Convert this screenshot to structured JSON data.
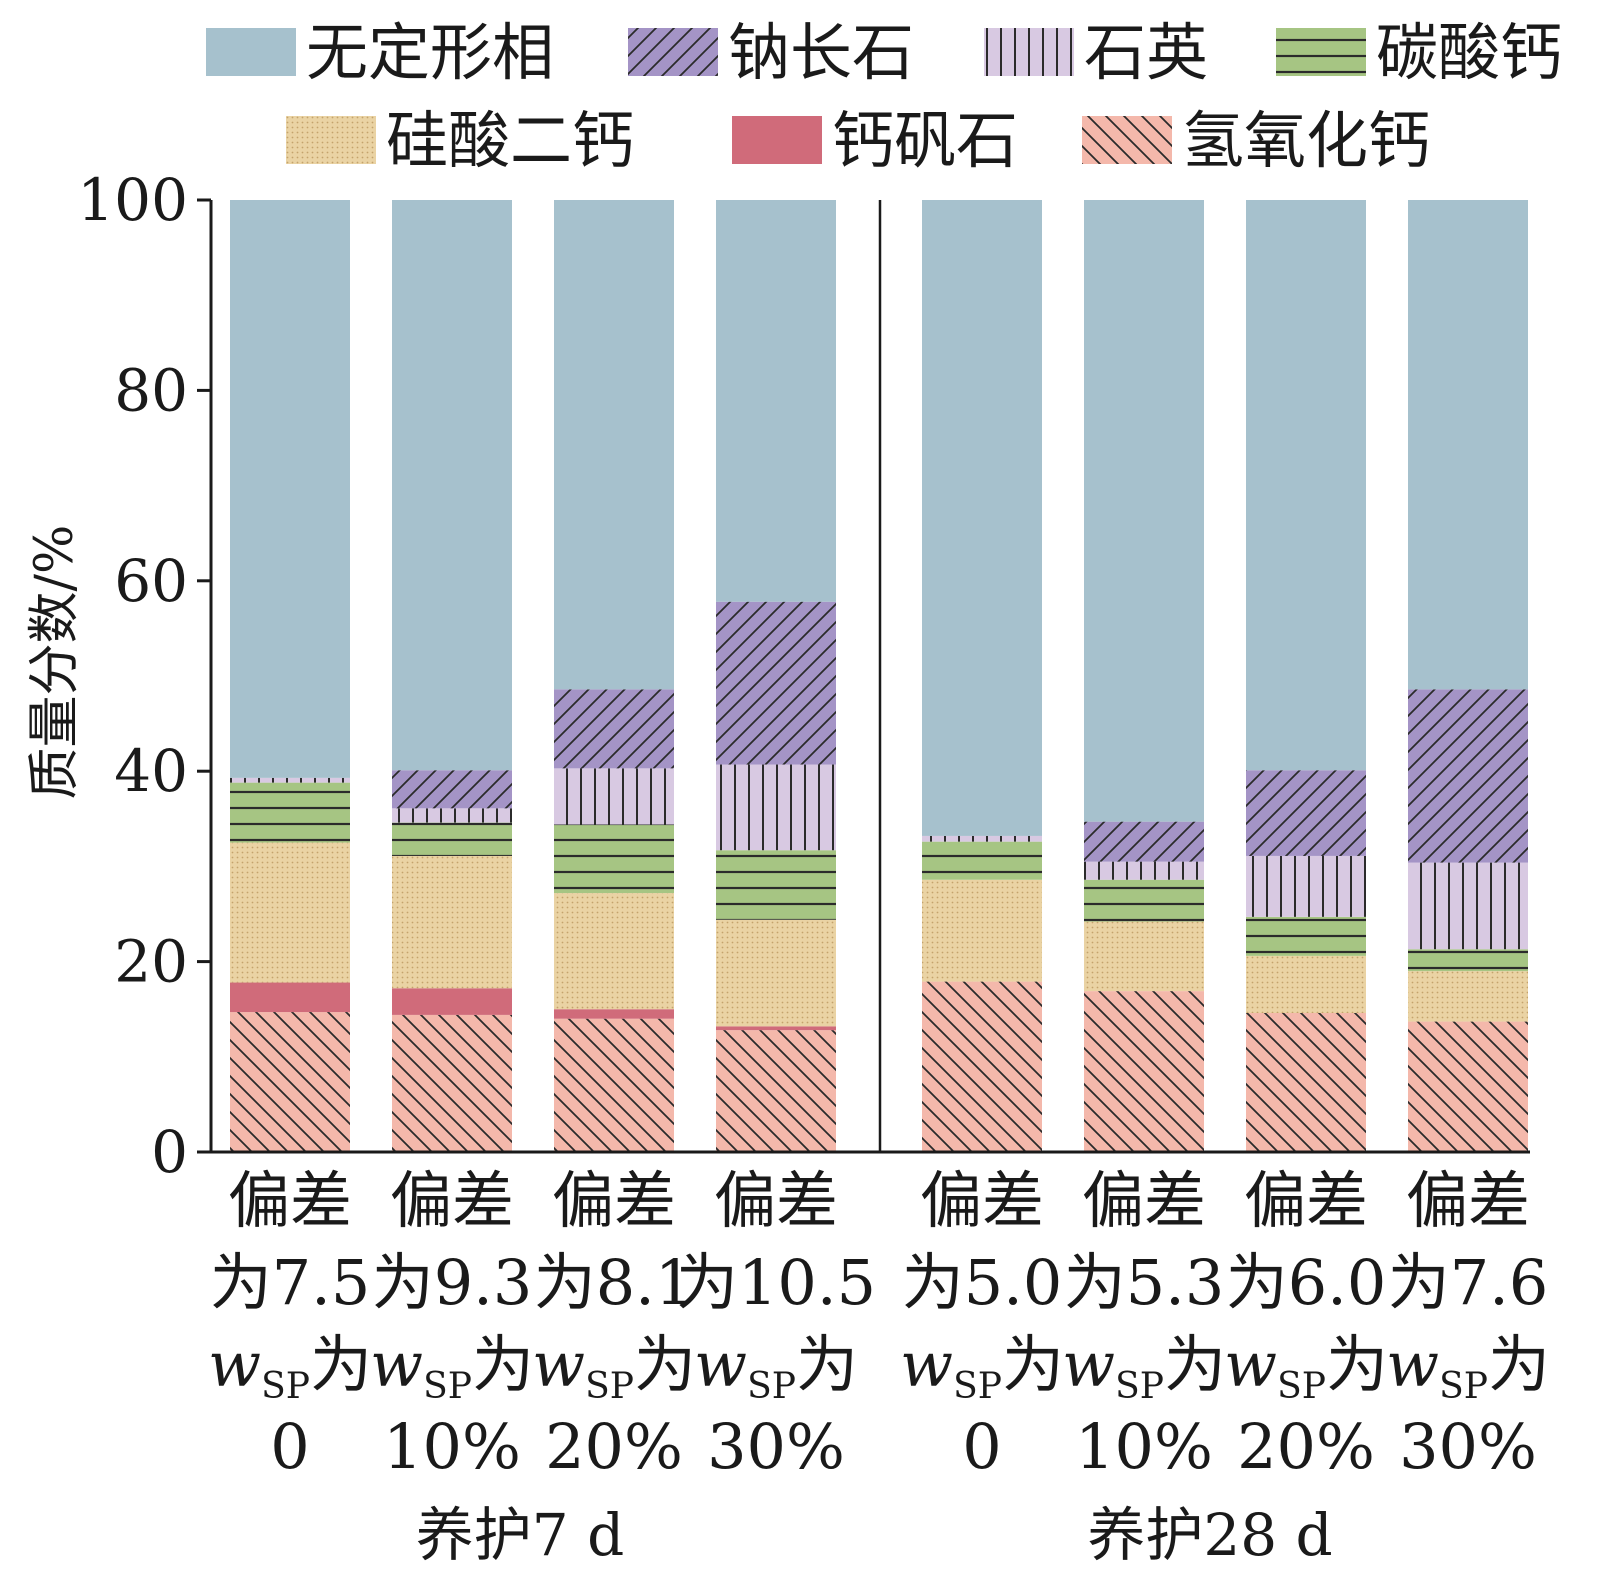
{
  "chart_data": {
    "type": "bar",
    "stacked": true,
    "ylabel": "质量分数/%",
    "ylim": [
      0,
      100
    ],
    "yticks": [
      0,
      20,
      40,
      60,
      80,
      100
    ],
    "legend": {
      "placement": "top",
      "entries": [
        "无定形相",
        "钠长石",
        "石英",
        "碳酸钙",
        "硅酸二钙",
        "钙矾石",
        "氢氧化钙"
      ]
    },
    "groups": [
      {
        "label": "养护7 d",
        "categories": [
          0,
          1,
          2,
          3
        ]
      },
      {
        "label": "养护28 d",
        "categories": [
          4,
          5,
          6,
          7
        ]
      }
    ],
    "categories": [
      {
        "line1": "偏差",
        "line2": "为7.5",
        "line3_w": "w",
        "line3_sub": "SP",
        "line3_tail": "为",
        "line4": "0"
      },
      {
        "line1": "偏差",
        "line2": "为9.3",
        "line3_w": "w",
        "line3_sub": "SP",
        "line3_tail": "为",
        "line4": "10%"
      },
      {
        "line1": "偏差",
        "line2": "为8.1",
        "line3_w": "w",
        "line3_sub": "SP",
        "line3_tail": "为",
        "line4": "20%"
      },
      {
        "line1": "偏差",
        "line2": "为10.5",
        "line3_w": "w",
        "line3_sub": "SP",
        "line3_tail": "为",
        "line4": "30%"
      },
      {
        "line1": "偏差",
        "line2": "为5.0",
        "line3_w": "w",
        "line3_sub": "SP",
        "line3_tail": "为",
        "line4": "0"
      },
      {
        "line1": "偏差",
        "line2": "为5.3",
        "line3_w": "w",
        "line3_sub": "SP",
        "line3_tail": "为",
        "line4": "10%"
      },
      {
        "line1": "偏差",
        "line2": "为6.0",
        "line3_w": "w",
        "line3_sub": "SP",
        "line3_tail": "为",
        "line4": "20%"
      },
      {
        "line1": "偏差",
        "line2": "为7.6",
        "line3_w": "w",
        "line3_sub": "SP",
        "line3_tail": "为",
        "line4": "30%"
      }
    ],
    "series": [
      {
        "name": "氢氧化钙",
        "color": "#f4b8ab",
        "pattern": "backslash",
        "values": [
          14.7,
          14.4,
          14.0,
          12.8,
          17.9,
          16.9,
          14.6,
          13.7
        ]
      },
      {
        "name": "钙矾石",
        "color": "#d06b7a",
        "pattern": "solid",
        "values": [
          3.1,
          2.8,
          1.0,
          0.4,
          0.0,
          0.0,
          0.0,
          0.0
        ]
      },
      {
        "name": "硅酸二钙",
        "color": "#ead3a4",
        "pattern": "dots",
        "values": [
          14.7,
          13.9,
          12.2,
          11.2,
          10.7,
          7.3,
          6.0,
          5.3
        ]
      },
      {
        "name": "碳酸钙",
        "color": "#a6c583",
        "pattern": "hlines",
        "values": [
          6.3,
          3.5,
          7.2,
          7.3,
          4.0,
          4.4,
          4.1,
          2.3
        ]
      },
      {
        "name": "石英",
        "color": "#d8c9e2",
        "pattern": "vlines",
        "values": [
          0.5,
          1.5,
          5.9,
          9.0,
          0.6,
          1.9,
          6.4,
          9.1
        ]
      },
      {
        "name": "钠长石",
        "color": "#a494c6",
        "pattern": "slash",
        "values": [
          0.0,
          4.0,
          8.3,
          17.1,
          0.0,
          4.2,
          9.0,
          18.2
        ]
      },
      {
        "name": "无定形相",
        "color": "#a6c1cd",
        "pattern": "solid",
        "values": [
          60.7,
          59.9,
          51.4,
          42.2,
          66.8,
          65.3,
          59.9,
          51.4
        ]
      }
    ]
  }
}
